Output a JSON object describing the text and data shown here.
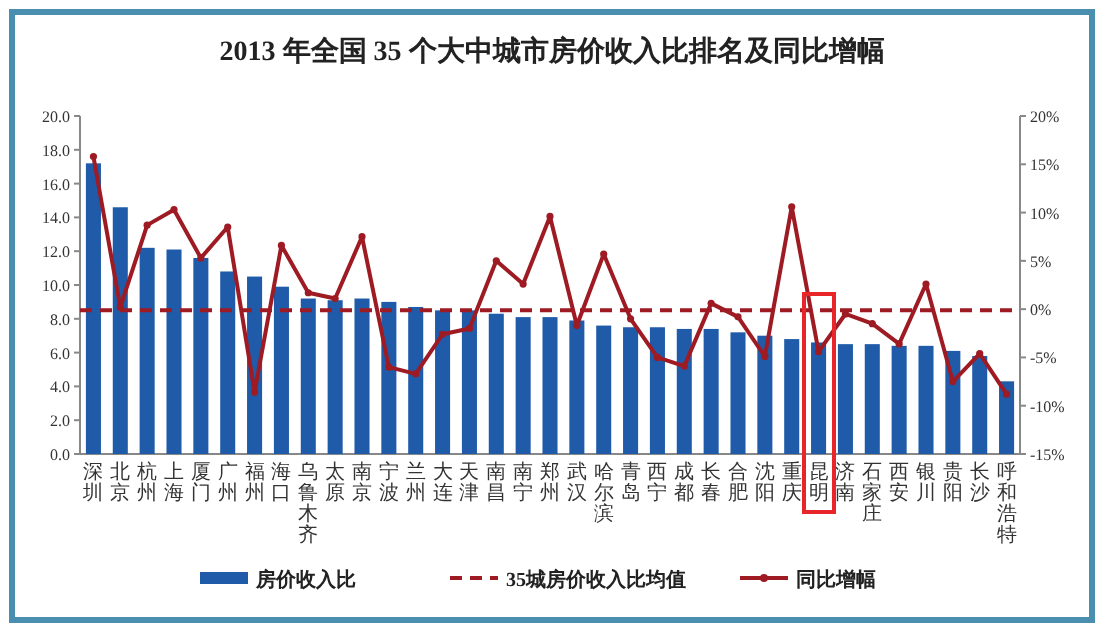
{
  "chart_data": {
    "type": "bar",
    "title": "2013 年全国 35 个大中城市房价收入比排名及同比增幅",
    "categories": [
      "深圳",
      "北京",
      "杭州",
      "上海",
      "厦门",
      "广州",
      "福州",
      "海口",
      "乌鲁木齐",
      "太原",
      "南京",
      "宁波",
      "兰州",
      "大连",
      "天津",
      "南昌",
      "南宁",
      "郑州",
      "武汉",
      "哈尔滨",
      "青岛",
      "西宁",
      "成都",
      "长春",
      "合肥",
      "沈阳",
      "重庆",
      "昆明",
      "济南",
      "石家庄",
      "西安",
      "银川",
      "贵阳",
      "长沙",
      "呼和浩特"
    ],
    "series": [
      {
        "name": "房价收入比",
        "color": "#1f5ba8",
        "values": [
          17.2,
          14.6,
          12.2,
          12.1,
          11.6,
          10.8,
          10.5,
          9.9,
          9.2,
          9.1,
          9.2,
          9.0,
          8.7,
          8.5,
          8.5,
          8.3,
          8.1,
          8.1,
          7.9,
          7.6,
          7.5,
          7.5,
          7.4,
          7.4,
          7.2,
          7.0,
          6.8,
          6.6,
          6.5,
          6.5,
          6.4,
          6.4,
          6.1,
          5.8,
          4.3
        ]
      },
      {
        "name": "同比增幅",
        "type": "line",
        "axis": "y2",
        "color": "#9e1b24",
        "marker": "circle",
        "line_style": "solid",
        "values": [
          15.8,
          0.2,
          8.7,
          10.3,
          5.3,
          8.5,
          -8.6,
          6.6,
          1.7,
          1.1,
          7.5,
          -6.0,
          -6.7,
          -2.6,
          -2.0,
          5.0,
          2.6,
          9.6,
          -1.7,
          5.7,
          -1.0,
          -5.0,
          -5.9,
          0.6,
          -0.8,
          -4.9,
          10.6,
          -4.4,
          -0.5,
          -1.5,
          -3.6,
          2.6,
          -7.5,
          -4.6,
          -8.8
        ]
      }
    ],
    "ref_lines": [
      {
        "axis": "y",
        "value": 8.5,
        "label": "35城房价收入比均值",
        "color": "#9e1b24",
        "line_style": "dashed"
      }
    ],
    "ylim": [
      0,
      20
    ],
    "yticks": [
      {
        "value": 0,
        "label": "0.0"
      },
      {
        "value": 2,
        "label": "2.0"
      },
      {
        "value": 4,
        "label": "4.0"
      },
      {
        "value": 6,
        "label": "6.0"
      },
      {
        "value": 8,
        "label": "8.0"
      },
      {
        "value": 10,
        "label": "10.0"
      },
      {
        "value": 12,
        "label": "12.0"
      },
      {
        "value": 14,
        "label": "14.0"
      },
      {
        "value": 16,
        "label": "16.0"
      },
      {
        "value": 18,
        "label": "18.0"
      },
      {
        "value": 20,
        "label": "20.0"
      }
    ],
    "y2lim": [
      -15,
      20
    ],
    "y2ticks": [
      {
        "value": -15,
        "label": "-15%"
      },
      {
        "value": -10,
        "label": "-10%"
      },
      {
        "value": -5,
        "label": "-5%"
      },
      {
        "value": 0,
        "label": "0%"
      },
      {
        "value": 5,
        "label": "5%"
      },
      {
        "value": 10,
        "label": "10%"
      },
      {
        "value": 15,
        "label": "15%"
      },
      {
        "value": 20,
        "label": "20%"
      }
    ],
    "grid": false,
    "legend": "bottom"
  }
}
